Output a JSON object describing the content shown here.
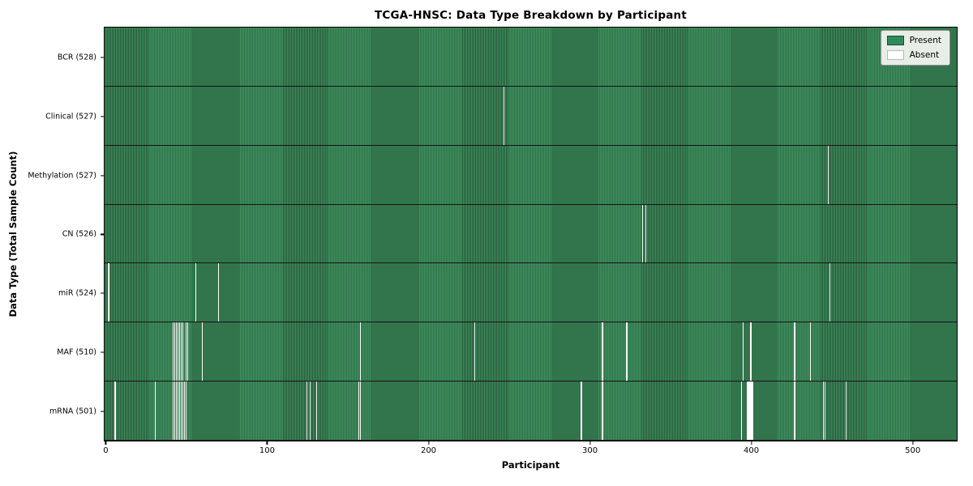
{
  "chart_data": {
    "type": "heatmap",
    "title": "TCGA-HNSC: Data Type Breakdown by Participant",
    "xlabel": "Participant",
    "ylabel": "Data Type (Total Sample Count)",
    "n_participants": 528,
    "x_ticks": [
      0,
      100,
      200,
      300,
      400,
      500
    ],
    "x_range": [
      0,
      527
    ],
    "grid": false,
    "legend": {
      "position": "upper right",
      "present_label": "Present",
      "absent_label": "Absent"
    },
    "colors": {
      "present": "#2e8b57",
      "present_stripe_light": "#3e8e5e",
      "present_stripe_dark": "#27593a",
      "present_edge": "#1c4c31",
      "absent": "#ffffff",
      "absent_edge": "#b8b8b8",
      "row_border": "#141414",
      "legend_bg": "#e8ede8",
      "legend_border": "#8f8f8f"
    },
    "rows": [
      {
        "name": "BCR",
        "label": "BCR (528)",
        "present_count": 528,
        "absent_participants": []
      },
      {
        "name": "Clinical",
        "label": "Clinical (527)",
        "present_count": 527,
        "absent_participants": [
          247
        ]
      },
      {
        "name": "Methylation",
        "label": "Methylation (527)",
        "present_count": 527,
        "absent_participants": [
          448
        ]
      },
      {
        "name": "CN",
        "label": "CN (526)",
        "present_count": 526,
        "absent_participants": [
          333,
          335
        ]
      },
      {
        "name": "miR",
        "label": "miR (524)",
        "present_count": 524,
        "absent_participants": [
          2,
          56,
          70,
          449
        ]
      },
      {
        "name": "MAF",
        "label": "MAF (510)",
        "present_count": 510,
        "absent_participants": [
          42,
          43,
          44,
          45,
          46,
          47,
          48,
          50,
          51,
          60,
          158,
          229,
          308,
          323,
          395,
          400,
          427,
          437
        ]
      },
      {
        "name": "mRNA",
        "label": "mRNA (501)",
        "present_count": 501,
        "absent_participants": [
          6,
          31,
          42,
          43,
          44,
          45,
          46,
          47,
          48,
          49,
          50,
          125,
          127,
          131,
          157,
          158,
          295,
          308,
          394,
          398,
          399,
          400,
          401,
          427,
          445,
          446,
          459
        ]
      }
    ]
  }
}
